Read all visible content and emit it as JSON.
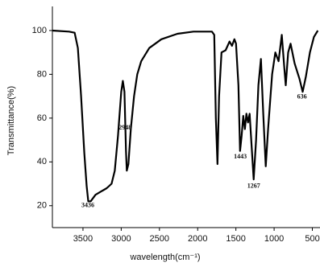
{
  "chart_data": {
    "type": "line",
    "x_label": "wavelength(cm⁻¹)",
    "y_label": "Transmittance(%)",
    "x": [
      3900,
      3683,
      3609,
      3567,
      3525,
      3483,
      3452,
      3431,
      3399,
      3336,
      3263,
      3189,
      3126,
      3084,
      3042,
      3000,
      2979,
      2958,
      2937,
      2927,
      2906,
      2874,
      2832,
      2790,
      2738,
      2633,
      2475,
      2265,
      2055,
      1814,
      1783,
      1762,
      1741,
      1720,
      1688,
      1635,
      1583,
      1551,
      1520,
      1499,
      1467,
      1446,
      1425,
      1404,
      1383,
      1362,
      1341,
      1320,
      1299,
      1268,
      1236,
      1205,
      1173,
      1142,
      1110,
      1079,
      1026,
      984,
      942,
      900,
      869,
      848,
      816,
      785,
      732,
      669,
      627,
      585,
      532,
      480,
      428
    ],
    "values": [
      100,
      99.5,
      99,
      92,
      70,
      44,
      29,
      22,
      22,
      25,
      26.5,
      28,
      30,
      36,
      52,
      72,
      77,
      72,
      45,
      36,
      39,
      55,
      70,
      80,
      86,
      92,
      96,
      98.5,
      99.5,
      99.5,
      98,
      60,
      39,
      70,
      90,
      91,
      95,
      93,
      96,
      94,
      75,
      45,
      52,
      61,
      55,
      62,
      58,
      62,
      50,
      32,
      50,
      75,
      87,
      62,
      38,
      55,
      80,
      90,
      86,
      98,
      84,
      75,
      90,
      94,
      85,
      78,
      72,
      79,
      90,
      97,
      100
    ],
    "color": "#000000",
    "peak_labels": [
      3436,
      2948,
      1443,
      1267,
      636
    ],
    "xlim": [
      3900,
      400
    ],
    "xticks": [
      3500,
      3000,
      2500,
      2000,
      1500,
      1000,
      500
    ],
    "ylim": [
      10,
      111
    ],
    "yticks": [
      20,
      40,
      60,
      80,
      100
    ]
  }
}
